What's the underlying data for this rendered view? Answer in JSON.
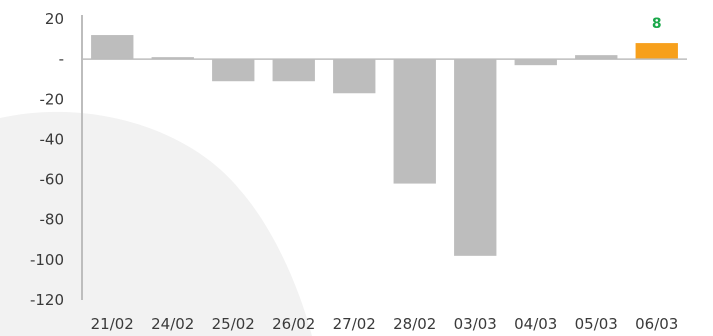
{
  "chart_data": {
    "type": "bar",
    "categories": [
      "21/02",
      "24/02",
      "25/02",
      "26/02",
      "27/02",
      "28/02",
      "03/03",
      "04/03",
      "05/03",
      "06/03"
    ],
    "values": [
      12,
      1,
      -11,
      -11,
      -17,
      -62,
      -98,
      -3,
      2,
      8
    ],
    "ylim": [
      -120,
      20
    ],
    "yticks": [
      20,
      0,
      -20,
      -40,
      -60,
      -80,
      -100,
      -120
    ],
    "ytick_labels": [
      "20",
      "-",
      "-20",
      "-40",
      "-60",
      "-80",
      "-100",
      "-120"
    ],
    "bar_color": "#bdbdbd",
    "highlight_color": "#f7a01c",
    "highlight_index": 9,
    "data_labels": [
      {
        "index": 9,
        "text": "8",
        "color": "#1aa84a"
      }
    ],
    "grid": false,
    "background_shape_color": "#f2f2f2"
  }
}
